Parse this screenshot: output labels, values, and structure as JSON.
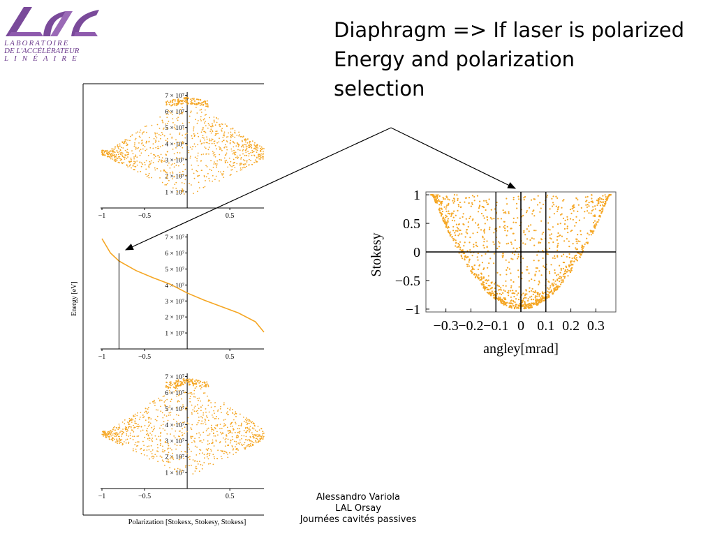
{
  "logo": {
    "line1": "LABORATOIRE",
    "line2": "DE L'ACCÉLÉRATEUR",
    "line3": "LINÉAIRE"
  },
  "title": {
    "line1": "Diaphragm => If laser is polarized",
    "line2": "Energy and polarization",
    "line3": "selection"
  },
  "footer": {
    "line1": "Alessandro Variola",
    "line2": "LAL Orsay",
    "line3": "Journées cavités passives"
  },
  "colors": {
    "points": "#f5a623",
    "axis": "#000000",
    "arrow": "#000000"
  },
  "chart_data": [
    {
      "type": "scatter",
      "panel": "top",
      "xlabel": "",
      "ylabel": "",
      "x_tick_labels": [
        "−1",
        "−0.5",
        "0.5"
      ],
      "y_tick_labels": [
        "1 × 10⁷",
        "2 × 10⁷",
        "3 × 10⁷",
        "4 × 10⁷",
        "5 × 10⁷",
        "6 × 10⁷",
        "7 × 10⁷"
      ],
      "xlim": [
        -1,
        0.9
      ],
      "ylim": [
        0,
        72000000.0
      ],
      "shape": "diamond",
      "y_peak": 69000000.0
    },
    {
      "type": "line",
      "panel": "middle",
      "ylabel": "Energy [eV]",
      "x_tick_labels": [
        "−1",
        "−0.5",
        "0.5"
      ],
      "y_tick_labels": [
        "1 × 10⁷",
        "2 × 10⁷",
        "3 × 10⁷",
        "4 × 10⁷",
        "5 × 10⁷",
        "6 × 10⁷",
        "7 × 10⁷"
      ],
      "xlim": [
        -1,
        0.9
      ],
      "ylim": [
        0,
        72000000.0
      ],
      "series": [
        {
          "x": [
            -1.0,
            -0.9,
            -0.8,
            -0.6,
            -0.4,
            -0.2,
            0.0,
            0.2,
            0.4,
            0.6,
            0.8,
            0.9
          ],
          "y": [
            69000000.0,
            60000000.0,
            55000000.0,
            49000000.0,
            44500000.0,
            40500000.0,
            35000000.0,
            30500000.0,
            26500000.0,
            22500000.0,
            17000000.0,
            10500000.0
          ]
        }
      ],
      "vertical_line_x": -0.8
    },
    {
      "type": "scatter",
      "panel": "bottom",
      "xlabel": "Polarization [Stokesx, Stokesy, Stokess]",
      "x_tick_labels": [
        "−1",
        "−0.5",
        "0.5"
      ],
      "y_tick_labels": [
        "1 × 10⁷",
        "2 × 10⁷",
        "3 × 10⁷",
        "4 × 10⁷",
        "5 × 10⁷",
        "6 × 10⁷",
        "7 × 10⁷"
      ],
      "xlim": [
        -1,
        0.9
      ],
      "ylim": [
        0,
        72000000.0
      ],
      "shape": "diamond",
      "y_peak": 69000000.0
    },
    {
      "type": "scatter",
      "panel": "right",
      "xlabel": "angley[mrad]",
      "ylabel": "Stokesy",
      "x_tick_labels": [
        "−0.3",
        "−0.2",
        "−0.1",
        "0",
        "0.1",
        "0.2",
        "0.3"
      ],
      "y_tick_labels": [
        "1",
        "0.5",
        "0",
        "−0.5",
        "−1"
      ],
      "xlim": [
        -0.38,
        0.38
      ],
      "ylim": [
        -1.05,
        1.05
      ],
      "vertical_lines_x": [
        -0.1,
        0.1
      ],
      "shape": "parabola-band"
    }
  ]
}
